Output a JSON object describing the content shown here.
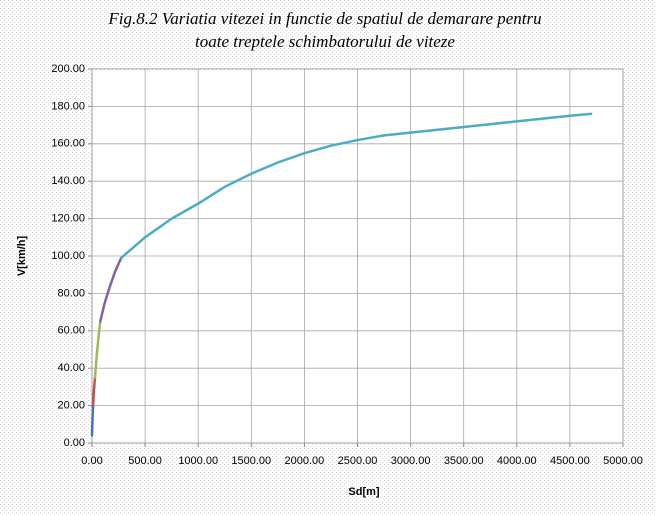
{
  "chart_data": {
    "type": "line",
    "title": [
      "Fig.8.2 Variatia vitezei in functie de spatiul de demarare pentru",
      "toate treptele schimbatorului de viteze"
    ],
    "x_label": "Sd[m]",
    "y_label": "V[km/h]",
    "xlim": [
      0,
      5000
    ],
    "xticks": [
      {
        "value": 0,
        "label": "0.00"
      },
      {
        "value": 500,
        "label": "500.00"
      },
      {
        "value": 1000,
        "label": "1000.00"
      },
      {
        "value": 1500,
        "label": "1500.00"
      },
      {
        "value": 2000,
        "label": "2000.00"
      },
      {
        "value": 2500,
        "label": "2500.00"
      },
      {
        "value": 3000,
        "label": "3000.00"
      },
      {
        "value": 3500,
        "label": "3500.00"
      },
      {
        "value": 4000,
        "label": "4000.00"
      },
      {
        "value": 4500,
        "label": "4500.00"
      },
      {
        "value": 5000,
        "label": "5000.00"
      }
    ],
    "ylim": [
      0,
      200
    ],
    "yticks": [
      {
        "value": 0,
        "label": "0.00"
      },
      {
        "value": 20,
        "label": "20.00"
      },
      {
        "value": 40,
        "label": "40.00"
      },
      {
        "value": 60,
        "label": "60.00"
      },
      {
        "value": 80,
        "label": "80.00"
      },
      {
        "value": 100,
        "label": "100.00"
      },
      {
        "value": 120,
        "label": "120.00"
      },
      {
        "value": 140,
        "label": "140.00"
      },
      {
        "value": 160,
        "label": "160.00"
      },
      {
        "value": 180,
        "label": "180.00"
      },
      {
        "value": 200,
        "label": "200.00"
      }
    ],
    "grid": true,
    "series": [
      {
        "color": "#4472c4",
        "x": [
          0,
          3,
          6,
          10
        ],
        "values": [
          4,
          10,
          15,
          20
        ]
      },
      {
        "color": "#c0504d",
        "x": [
          10,
          18,
          28
        ],
        "values": [
          20,
          28,
          35
        ]
      },
      {
        "color": "#9bbb59",
        "x": [
          28,
          45,
          60,
          78
        ],
        "values": [
          35,
          47,
          56,
          65
        ]
      },
      {
        "color": "#8064a2",
        "x": [
          78,
          120,
          170,
          220,
          275
        ],
        "values": [
          65,
          75,
          84,
          92,
          99
        ]
      },
      {
        "color": "#4bacc6",
        "x": [
          275,
          500,
          750,
          1000,
          1250,
          1500,
          1750,
          2000,
          2250,
          2500,
          2750,
          3000,
          3500,
          4000,
          4500,
          4700
        ],
        "values": [
          99,
          110,
          120,
          128,
          137,
          144,
          150,
          155,
          159,
          162,
          164.5,
          166,
          169,
          172,
          175,
          176
        ]
      }
    ]
  }
}
